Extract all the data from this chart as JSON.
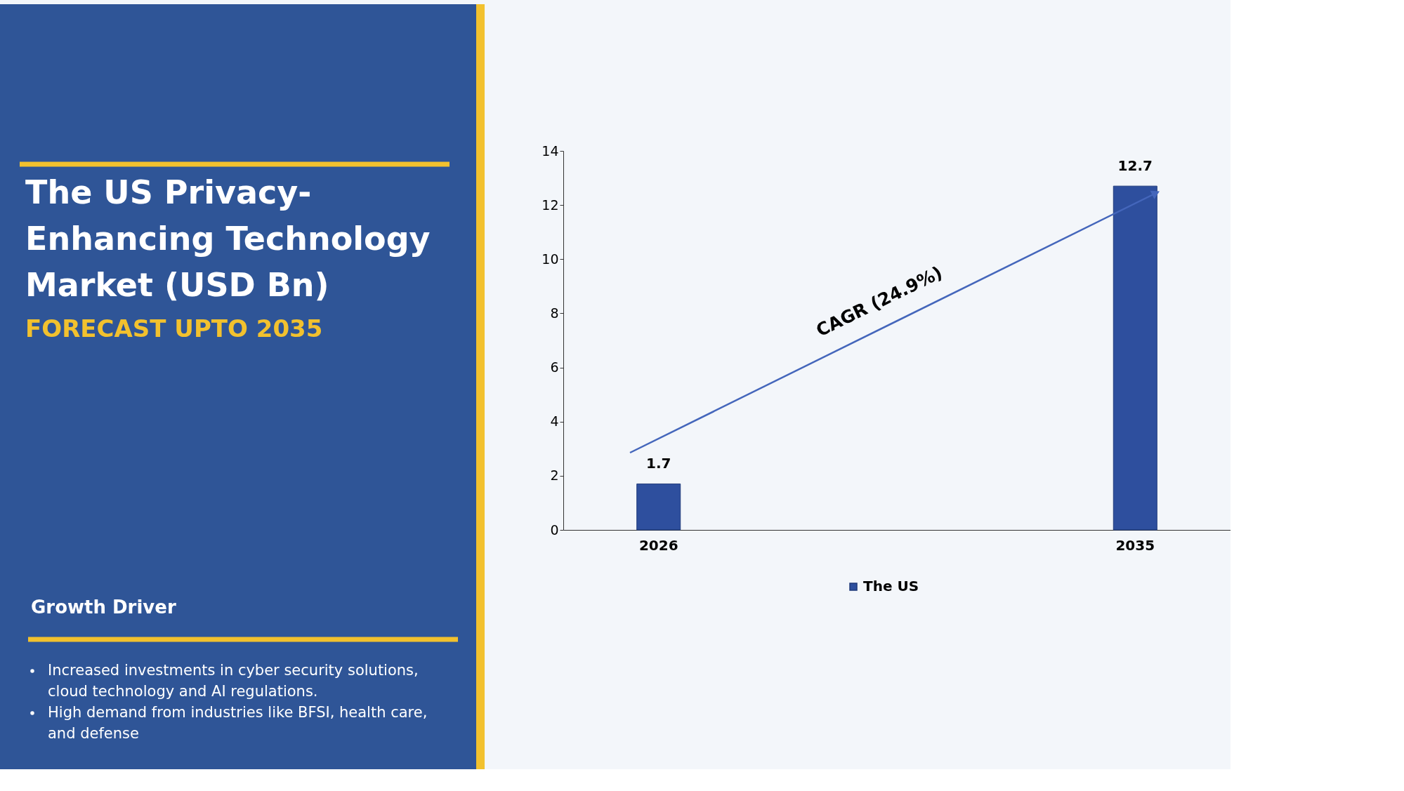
{
  "chart_data": {
    "type": "bar",
    "title": "The US Privacy-Enhancing Technology Market (USD Bn)",
    "subtitle": "FORECAST UPTO 2035",
    "categories": [
      "2026",
      "2035"
    ],
    "series": [
      {
        "name": "The US",
        "color": "#2e4f9e",
        "values": [
          1.7,
          12.7
        ]
      }
    ],
    "ylim": [
      0,
      14
    ],
    "yticks": [
      0,
      2,
      4,
      6,
      8,
      10,
      12,
      14
    ],
    "grid": false,
    "legend": "bottom",
    "data_labels": true,
    "annotations": [
      "CAGR (24.9%)",
      "Growth Driver",
      "Increased investments in cyber security solutions, cloud technology and AI regulations.",
      "High demand from industries like BFSI, health care, and defense"
    ]
  }
}
